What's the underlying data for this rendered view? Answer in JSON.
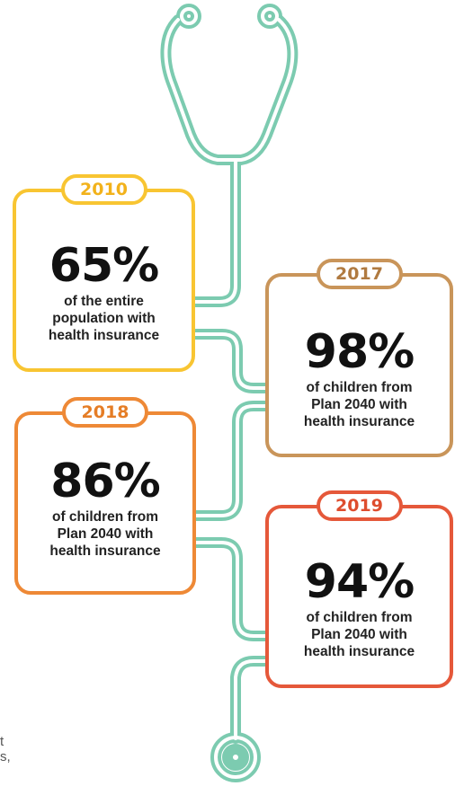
{
  "colors": {
    "tube": "#7CCBB0",
    "yellow": "#F8C532",
    "tan": "#C9955A",
    "orange": "#EE8936",
    "red": "#E5583A"
  },
  "icon": "stethoscope-icon",
  "cards": [
    {
      "year": "2010",
      "percent": "65%",
      "text": "of the entire population with health insurance"
    },
    {
      "year": "2017",
      "percent": "98%",
      "text": "of children from Plan 2040 with health insurance"
    },
    {
      "year": "2018",
      "percent": "86%",
      "text": "of children from Plan 2040 with health insurance"
    },
    {
      "year": "2019",
      "percent": "94%",
      "text": "of children from Plan 2040 with health insurance"
    }
  ],
  "edge_text": {
    "line1": "t",
    "line2": "s,"
  }
}
